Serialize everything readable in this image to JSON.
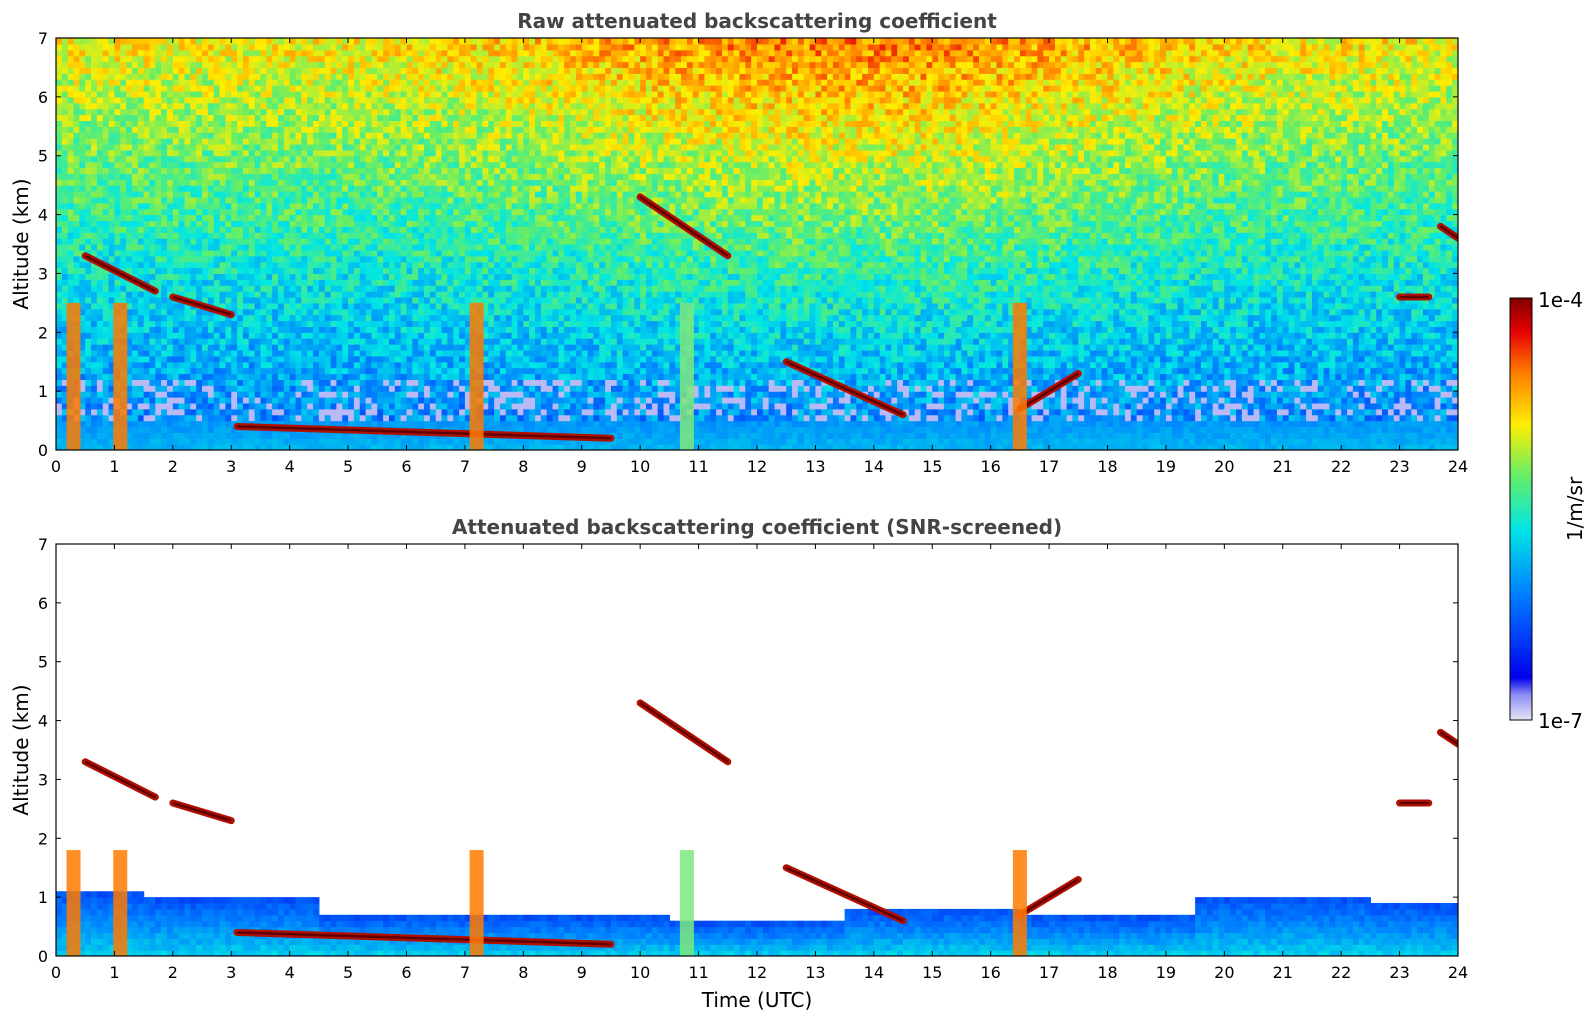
{
  "chart_data": [
    {
      "type": "heatmap",
      "title": "Raw attenuated backscattering coefficient",
      "xlabel": "",
      "ylabel": "Altitude (km)",
      "xlim": [
        0,
        24
      ],
      "ylim": [
        0,
        7
      ],
      "xticks": [
        "0",
        "1",
        "2",
        "3",
        "4",
        "5",
        "6",
        "7",
        "8",
        "9",
        "10",
        "11",
        "12",
        "13",
        "14",
        "15",
        "16",
        "17",
        "18",
        "19",
        "20",
        "21",
        "22",
        "23",
        "24"
      ],
      "yticks": [
        "0",
        "1",
        "2",
        "3",
        "4",
        "5",
        "6",
        "7"
      ],
      "features": {
        "boundary_layer_top_km": 0.5,
        "noise_background": "increases with altitude; red above 5 km between 10 and 17 UTC",
        "cloud_layers": [
          {
            "t0": 0.5,
            "t1": 1.7,
            "h0": 3.3,
            "h1": 2.7
          },
          {
            "t0": 2.0,
            "t1": 3.0,
            "h0": 2.6,
            "h1": 2.3
          },
          {
            "t0": 3.1,
            "t1": 9.5,
            "h0": 0.4,
            "h1": 0.2
          },
          {
            "t0": 10.0,
            "t1": 11.5,
            "h0": 4.3,
            "h1": 3.3
          },
          {
            "t0": 12.5,
            "t1": 14.5,
            "h0": 1.5,
            "h1": 0.6
          },
          {
            "t0": 16.5,
            "t1": 17.5,
            "h0": 0.7,
            "h1": 1.3
          },
          {
            "t0": 23.0,
            "t1": 23.5,
            "h0": 2.6,
            "h1": 2.6
          },
          {
            "t0": 23.7,
            "t1": 24.0,
            "h0": 3.8,
            "h1": 3.6
          }
        ]
      }
    },
    {
      "type": "heatmap",
      "title": "Attenuated backscattering coefficient (SNR-screened)",
      "xlabel": "Time (UTC)",
      "ylabel": "Altitude (km)",
      "xlim": [
        0,
        24
      ],
      "ylim": [
        0,
        7
      ],
      "xticks": [
        "0",
        "1",
        "2",
        "3",
        "4",
        "5",
        "6",
        "7",
        "8",
        "9",
        "10",
        "11",
        "12",
        "13",
        "14",
        "15",
        "16",
        "17",
        "18",
        "19",
        "20",
        "21",
        "22",
        "23",
        "24"
      ],
      "yticks": [
        "0",
        "1",
        "2",
        "3",
        "4",
        "5",
        "6",
        "7"
      ],
      "features": {
        "boundary_layer_top_km": [
          1.1,
          1.0,
          0.7,
          0.7,
          0.6,
          0.8,
          0.7,
          1.0,
          0.9
        ],
        "screened_region": "white where signal-to-noise is low"
      }
    }
  ],
  "colorbar": {
    "label": "1/m/sr",
    "max_label": "1e-4",
    "min_label": "1e-7",
    "scale": "log",
    "range": [
      1e-07,
      0.0001
    ],
    "colormap": "jet"
  }
}
